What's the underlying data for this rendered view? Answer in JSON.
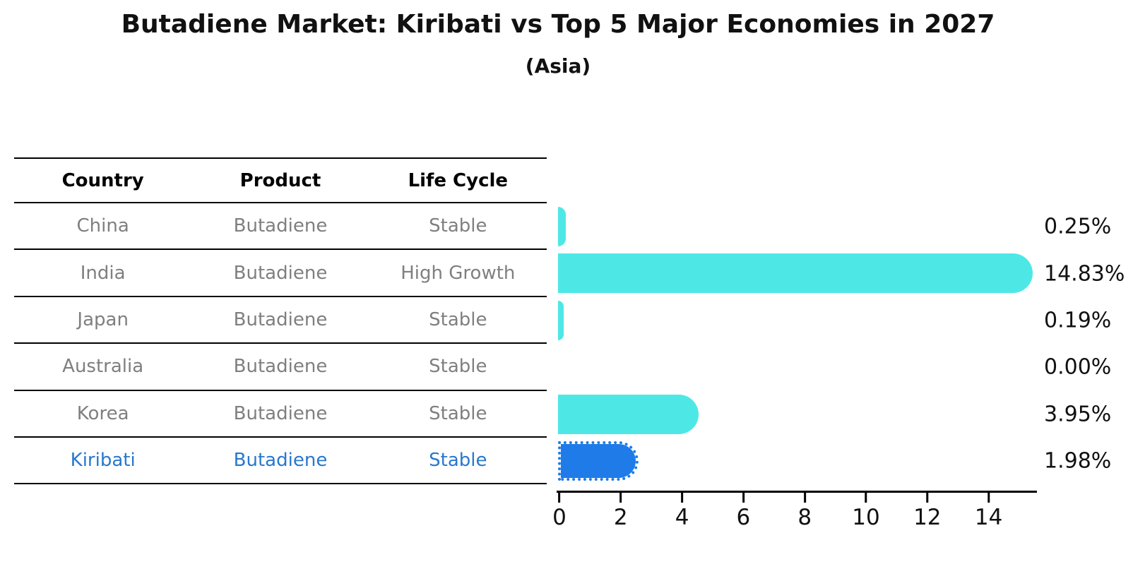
{
  "header": {
    "title": "Butadiene Market: Kiribati vs Top 5 Major Economies in 2027",
    "subtitle": "(Asia)"
  },
  "table": {
    "columns": [
      "Country",
      "Product",
      "Life Cycle"
    ],
    "rows": [
      {
        "country": "China",
        "product": "Butadiene",
        "life_cycle": "Stable",
        "highlight": false
      },
      {
        "country": "India",
        "product": "Butadiene",
        "life_cycle": "High Growth",
        "highlight": false
      },
      {
        "country": "Japan",
        "product": "Butadiene",
        "life_cycle": "Stable",
        "highlight": false
      },
      {
        "country": "Australia",
        "product": "Butadiene",
        "life_cycle": "Stable",
        "highlight": false
      },
      {
        "country": "Korea",
        "product": "Butadiene",
        "life_cycle": "Stable",
        "highlight": false
      },
      {
        "country": "Kiribati",
        "product": "Butadiene",
        "life_cycle": "Stable",
        "highlight": true
      }
    ]
  },
  "chart_data": {
    "type": "bar",
    "orientation": "horizontal",
    "title": "Butadiene Market: Kiribati vs Top 5 Major Economies in 2027",
    "subtitle": "(Asia)",
    "categories": [
      "China",
      "India",
      "Japan",
      "Australia",
      "Korea",
      "Kiribati"
    ],
    "values": [
      0.25,
      14.83,
      0.19,
      0.0,
      3.95,
      1.98
    ],
    "value_labels": [
      "0.25%",
      "14.83%",
      "0.19%",
      "0.00%",
      "3.95%",
      "1.98%"
    ],
    "xticks": [
      0,
      2,
      4,
      6,
      8,
      10,
      12,
      14
    ],
    "xlim": [
      0,
      15.6
    ],
    "grid": false,
    "legend": "none",
    "bar_color": "#4de8e6",
    "highlight_color": "#1e7be8",
    "highlight_index": 5,
    "highlight_text_color": "#2878ce",
    "text_gray": "#7f7f7f"
  }
}
